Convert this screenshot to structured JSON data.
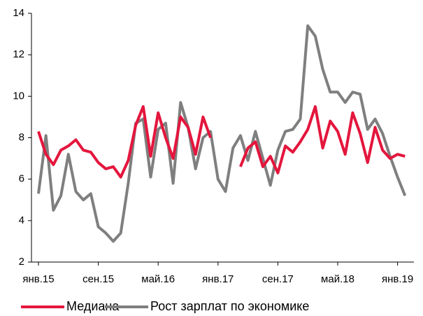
{
  "chart_data": {
    "type": "line",
    "categories": [
      "янв.15",
      null,
      null,
      null,
      null,
      null,
      null,
      null,
      "сен.15",
      null,
      null,
      null,
      null,
      null,
      null,
      null,
      "май.16",
      null,
      null,
      null,
      null,
      null,
      null,
      null,
      "янв.17",
      null,
      null,
      null,
      null,
      null,
      null,
      null,
      "сен.17",
      null,
      null,
      null,
      null,
      null,
      null,
      null,
      "май.18",
      null,
      null,
      null,
      null,
      null,
      null,
      null,
      "янв.19",
      null
    ],
    "series": [
      {
        "name": "Медиана",
        "color": "#e4163d",
        "values": [
          8.3,
          7.2,
          6.7,
          7.4,
          7.6,
          7.9,
          7.4,
          7.3,
          6.8,
          6.5,
          6.6,
          6.1,
          6.9,
          8.6,
          9.5,
          7.1,
          9.2,
          8.0,
          7.0,
          9.0,
          8.5,
          7.2,
          9.0,
          8.0,
          null,
          null,
          null,
          6.6,
          7.5,
          7.8,
          6.6,
          7.1,
          6.3,
          7.6,
          7.3,
          7.8,
          8.4,
          9.5,
          7.5,
          8.8,
          8.3,
          7.2,
          9.2,
          8.2,
          6.8,
          8.5,
          7.4,
          7.0,
          7.2,
          7.1
        ]
      },
      {
        "name": "Рост зарплат по экономике",
        "color": "#7f7f7f",
        "values": [
          5.3,
          8.1,
          4.5,
          5.2,
          7.2,
          5.4,
          5.0,
          5.3,
          3.7,
          3.4,
          3.0,
          3.4,
          5.8,
          8.7,
          8.9,
          6.1,
          8.4,
          8.7,
          5.8,
          9.7,
          8.5,
          6.5,
          8.0,
          8.3,
          6.0,
          5.4,
          7.5,
          8.1,
          6.9,
          8.3,
          7.0,
          5.7,
          7.4,
          8.3,
          8.4,
          8.9,
          13.4,
          12.9,
          11.3,
          10.2,
          10.2,
          9.7,
          10.2,
          10.1,
          8.4,
          8.9,
          8.2,
          7.1,
          6.1,
          5.2
        ]
      }
    ],
    "ylim": [
      2,
      14
    ],
    "yticks": [
      2,
      4,
      6,
      8,
      10,
      12,
      14
    ],
    "grid": false,
    "legend": "bottom"
  }
}
